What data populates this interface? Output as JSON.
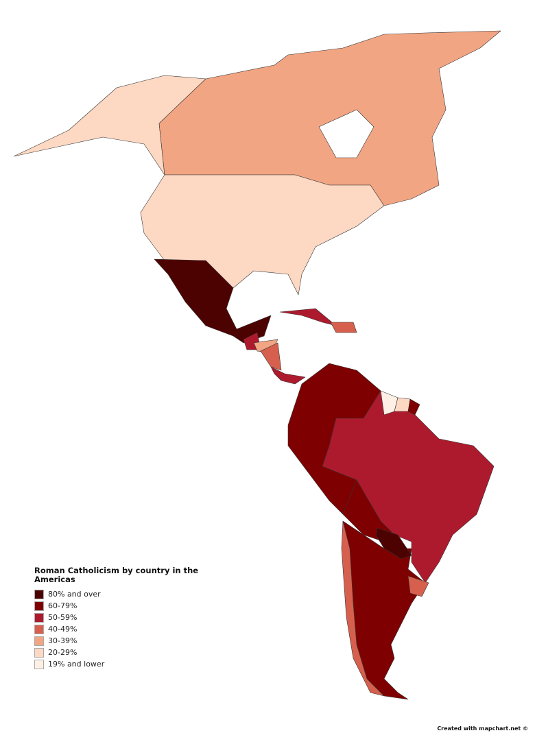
{
  "legend": {
    "title": "Roman Catholicism by country in the Americas",
    "items": [
      {
        "label": "80% and over",
        "color": "#4d0202"
      },
      {
        "label": "60-79%",
        "color": "#7f0000"
      },
      {
        "label": "50-59%",
        "color": "#ae1a2d"
      },
      {
        "label": "40-49%",
        "color": "#d6604d"
      },
      {
        "label": "30-39%",
        "color": "#f2a582"
      },
      {
        "label": "20-29%",
        "color": "#fdd8c3"
      },
      {
        "label": "19% and lower",
        "color": "#fff0e6"
      }
    ]
  },
  "credit": "Created with mapchart.net ©"
}
